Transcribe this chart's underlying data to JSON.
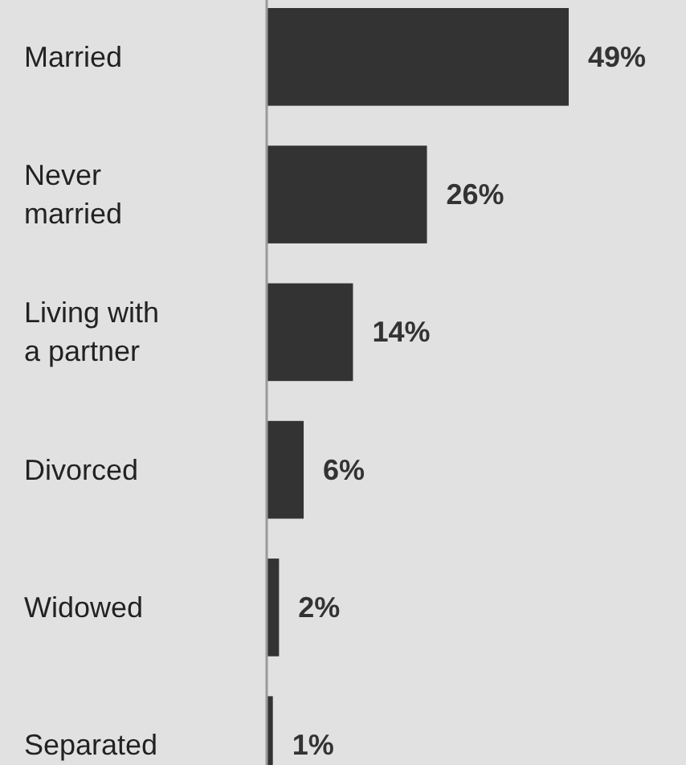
{
  "chart_data": {
    "type": "bar",
    "orientation": "horizontal",
    "categories": [
      "Married",
      "Never married",
      "Living with a partner",
      "Divorced",
      "Widowed",
      "Separated"
    ],
    "values": [
      49,
      26,
      14,
      6,
      2,
      1
    ],
    "color": "#333333",
    "value_labels": [
      "49%",
      "26%",
      "14%",
      "6%",
      "2%",
      "1%"
    ]
  }
}
